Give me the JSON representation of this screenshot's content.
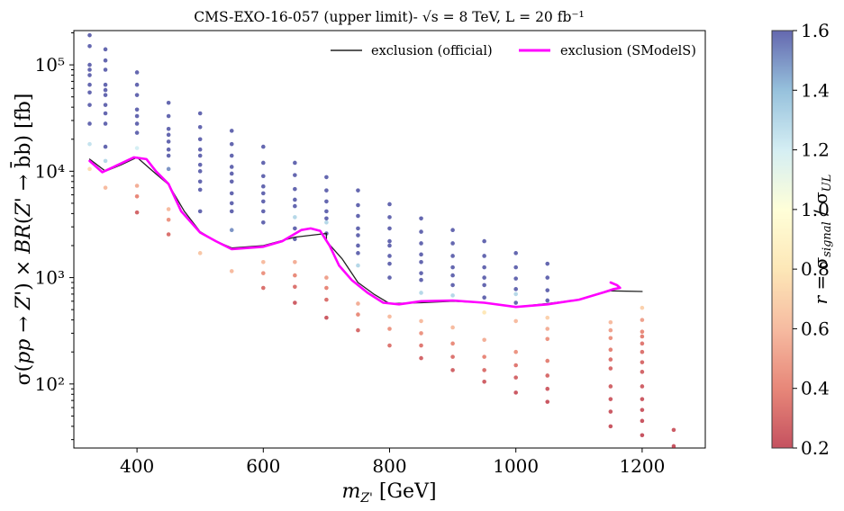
{
  "chart_data": {
    "type": "scatter",
    "title": "CMS-EXO-16-057 (upper limit)- √s = 8 TeV, L = 20 fb⁻¹",
    "xlabel": "m_Z' [GeV]",
    "ylabel": "σ(pp → Z') × BR(Z' → b̄b) [fb]",
    "xlim": [
      300,
      1300
    ],
    "ylim": [
      25,
      210000
    ],
    "yscale": "log",
    "xticks": [
      400,
      600,
      800,
      1000,
      1200
    ],
    "yticks": [
      {
        "value": 100,
        "label": "10²"
      },
      {
        "value": 1000,
        "label": "10³"
      },
      {
        "value": 10000,
        "label": "10⁴"
      },
      {
        "value": 100000,
        "label": "10⁵"
      }
    ],
    "colorbar": {
      "label": "r = σ_signal / σ_UL",
      "min": 0.2,
      "max": 1.6,
      "ticks": [
        "0.2",
        "0.4",
        "0.6",
        "0.8",
        "1.0",
        "1.2",
        "1.4",
        "1.6"
      ]
    },
    "legend": {
      "placement": "top-right",
      "entries": [
        {
          "label": "exclusion (official)",
          "color": "#222222"
        },
        {
          "label": "exclusion (SModelS)",
          "color": "#ff00ff"
        }
      ]
    },
    "series": [
      {
        "name": "exclusion (official)",
        "color": "#222222",
        "x": [
          325,
          350,
          375,
          400,
          425,
          450,
          475,
          500,
          525,
          550,
          600,
          650,
          700,
          700,
          725,
          750,
          775,
          800,
          850,
          900,
          950,
          1000,
          1050,
          1100,
          1150,
          1200
        ],
        "y": [
          13000,
          10000,
          11500,
          13500,
          10000,
          7500,
          4200,
          2700,
          2200,
          1900,
          2000,
          2400,
          2600,
          2200,
          1500,
          900,
          700,
          570,
          580,
          600,
          580,
          530,
          570,
          620,
          750,
          740
        ]
      },
      {
        "name": "exclusion (SModelS)",
        "color": "#ff00ff",
        "x": [
          325,
          345,
          370,
          395,
          415,
          430,
          450,
          470,
          500,
          525,
          550,
          600,
          630,
          660,
          675,
          690,
          705,
          720,
          740,
          765,
          790,
          815,
          850,
          900,
          950,
          1000,
          1050,
          1100,
          1140,
          1155,
          1165,
          1160,
          1150
        ],
        "y": [
          12500,
          9800,
          11500,
          13500,
          13000,
          10000,
          7600,
          4200,
          2650,
          2200,
          1850,
          1950,
          2200,
          2800,
          2900,
          2750,
          2000,
          1300,
          950,
          720,
          580,
          560,
          600,
          610,
          580,
          530,
          560,
          620,
          730,
          780,
          800,
          850,
          900
        ]
      }
    ],
    "points": [
      {
        "x": 325,
        "y": 190000,
        "r": 1.6
      },
      {
        "x": 325,
        "y": 150000,
        "r": 1.6
      },
      {
        "x": 325,
        "y": 100000,
        "r": 1.6
      },
      {
        "x": 325,
        "y": 90000,
        "r": 1.6
      },
      {
        "x": 325,
        "y": 80000,
        "r": 1.6
      },
      {
        "x": 325,
        "y": 65000,
        "r": 1.6
      },
      {
        "x": 325,
        "y": 55000,
        "r": 1.6
      },
      {
        "x": 325,
        "y": 42000,
        "r": 1.6
      },
      {
        "x": 325,
        "y": 28000,
        "r": 1.6
      },
      {
        "x": 325,
        "y": 18000,
        "r": 1.25
      },
      {
        "x": 325,
        "y": 10500,
        "r": 0.75
      },
      {
        "x": 350,
        "y": 140000,
        "r": 1.6
      },
      {
        "x": 350,
        "y": 110000,
        "r": 1.6
      },
      {
        "x": 350,
        "y": 90000,
        "r": 1.6
      },
      {
        "x": 350,
        "y": 65000,
        "r": 1.6
      },
      {
        "x": 350,
        "y": 58000,
        "r": 1.6
      },
      {
        "x": 350,
        "y": 52000,
        "r": 1.6
      },
      {
        "x": 350,
        "y": 42000,
        "r": 1.6
      },
      {
        "x": 350,
        "y": 35000,
        "r": 1.6
      },
      {
        "x": 350,
        "y": 28000,
        "r": 1.6
      },
      {
        "x": 350,
        "y": 17000,
        "r": 1.6
      },
      {
        "x": 350,
        "y": 12500,
        "r": 1.3
      },
      {
        "x": 350,
        "y": 7000,
        "r": 0.6
      },
      {
        "x": 400,
        "y": 85000,
        "r": 1.6
      },
      {
        "x": 400,
        "y": 65000,
        "r": 1.6
      },
      {
        "x": 400,
        "y": 52000,
        "r": 1.6
      },
      {
        "x": 400,
        "y": 38000,
        "r": 1.6
      },
      {
        "x": 400,
        "y": 33000,
        "r": 1.6
      },
      {
        "x": 400,
        "y": 28000,
        "r": 1.6
      },
      {
        "x": 400,
        "y": 23000,
        "r": 1.6
      },
      {
        "x": 400,
        "y": 16500,
        "r": 1.2
      },
      {
        "x": 400,
        "y": 7300,
        "r": 0.55
      },
      {
        "x": 400,
        "y": 5800,
        "r": 0.4
      },
      {
        "x": 400,
        "y": 4100,
        "r": 0.28
      },
      {
        "x": 450,
        "y": 44000,
        "r": 1.6
      },
      {
        "x": 450,
        "y": 33000,
        "r": 1.6
      },
      {
        "x": 450,
        "y": 25000,
        "r": 1.6
      },
      {
        "x": 450,
        "y": 22000,
        "r": 1.6
      },
      {
        "x": 450,
        "y": 19000,
        "r": 1.6
      },
      {
        "x": 450,
        "y": 16000,
        "r": 1.6
      },
      {
        "x": 450,
        "y": 14000,
        "r": 1.6
      },
      {
        "x": 450,
        "y": 10500,
        "r": 1.5
      },
      {
        "x": 450,
        "y": 4400,
        "r": 0.6
      },
      {
        "x": 450,
        "y": 3500,
        "r": 0.45
      },
      {
        "x": 450,
        "y": 2550,
        "r": 0.32
      },
      {
        "x": 500,
        "y": 35000,
        "r": 1.6
      },
      {
        "x": 500,
        "y": 26000,
        "r": 1.6
      },
      {
        "x": 500,
        "y": 20000,
        "r": 1.6
      },
      {
        "x": 500,
        "y": 16000,
        "r": 1.6
      },
      {
        "x": 500,
        "y": 14000,
        "r": 1.6
      },
      {
        "x": 500,
        "y": 11500,
        "r": 1.6
      },
      {
        "x": 500,
        "y": 10000,
        "r": 1.6
      },
      {
        "x": 500,
        "y": 8000,
        "r": 1.6
      },
      {
        "x": 500,
        "y": 6700,
        "r": 1.6
      },
      {
        "x": 500,
        "y": 4200,
        "r": 1.6
      },
      {
        "x": 500,
        "y": 1700,
        "r": 0.65
      },
      {
        "x": 550,
        "y": 24000,
        "r": 1.6
      },
      {
        "x": 550,
        "y": 18000,
        "r": 1.6
      },
      {
        "x": 550,
        "y": 14000,
        "r": 1.6
      },
      {
        "x": 550,
        "y": 11000,
        "r": 1.6
      },
      {
        "x": 550,
        "y": 9500,
        "r": 1.6
      },
      {
        "x": 550,
        "y": 8000,
        "r": 1.6
      },
      {
        "x": 550,
        "y": 6200,
        "r": 1.6
      },
      {
        "x": 550,
        "y": 5000,
        "r": 1.6
      },
      {
        "x": 550,
        "y": 4200,
        "r": 1.6
      },
      {
        "x": 550,
        "y": 2800,
        "r": 1.5
      },
      {
        "x": 550,
        "y": 1150,
        "r": 0.6
      },
      {
        "x": 600,
        "y": 17000,
        "r": 1.6
      },
      {
        "x": 600,
        "y": 12000,
        "r": 1.6
      },
      {
        "x": 600,
        "y": 9000,
        "r": 1.6
      },
      {
        "x": 600,
        "y": 7200,
        "r": 1.6
      },
      {
        "x": 600,
        "y": 6200,
        "r": 1.6
      },
      {
        "x": 600,
        "y": 5200,
        "r": 1.6
      },
      {
        "x": 600,
        "y": 4200,
        "r": 1.6
      },
      {
        "x": 600,
        "y": 3300,
        "r": 1.6
      },
      {
        "x": 600,
        "y": 1400,
        "r": 0.6
      },
      {
        "x": 600,
        "y": 1100,
        "r": 0.45
      },
      {
        "x": 600,
        "y": 800,
        "r": 0.32
      },
      {
        "x": 650,
        "y": 12000,
        "r": 1.6
      },
      {
        "x": 650,
        "y": 9200,
        "r": 1.6
      },
      {
        "x": 650,
        "y": 6800,
        "r": 1.6
      },
      {
        "x": 650,
        "y": 5400,
        "r": 1.6
      },
      {
        "x": 650,
        "y": 4700,
        "r": 1.6
      },
      {
        "x": 650,
        "y": 3700,
        "r": 1.3
      },
      {
        "x": 650,
        "y": 2900,
        "r": 1.6
      },
      {
        "x": 650,
        "y": 2300,
        "r": 1.6
      },
      {
        "x": 650,
        "y": 1400,
        "r": 0.55
      },
      {
        "x": 650,
        "y": 1050,
        "r": 0.42
      },
      {
        "x": 650,
        "y": 820,
        "r": 0.33
      },
      {
        "x": 650,
        "y": 580,
        "r": 0.25
      },
      {
        "x": 700,
        "y": 8800,
        "r": 1.6
      },
      {
        "x": 700,
        "y": 6600,
        "r": 1.6
      },
      {
        "x": 700,
        "y": 5200,
        "r": 1.6
      },
      {
        "x": 700,
        "y": 4200,
        "r": 1.6
      },
      {
        "x": 700,
        "y": 3600,
        "r": 1.6
      },
      {
        "x": 700,
        "y": 3300,
        "r": 1.3
      },
      {
        "x": 700,
        "y": 2600,
        "r": 1.6
      },
      {
        "x": 700,
        "y": 1000,
        "r": 0.5
      },
      {
        "x": 700,
        "y": 800,
        "r": 0.4
      },
      {
        "x": 700,
        "y": 620,
        "r": 0.32
      },
      {
        "x": 700,
        "y": 420,
        "r": 0.24
      },
      {
        "x": 750,
        "y": 6600,
        "r": 1.6
      },
      {
        "x": 750,
        "y": 4800,
        "r": 1.6
      },
      {
        "x": 750,
        "y": 3800,
        "r": 1.6
      },
      {
        "x": 750,
        "y": 2900,
        "r": 1.6
      },
      {
        "x": 750,
        "y": 2500,
        "r": 1.6
      },
      {
        "x": 750,
        "y": 2000,
        "r": 1.6
      },
      {
        "x": 750,
        "y": 1700,
        "r": 1.6
      },
      {
        "x": 750,
        "y": 1300,
        "r": 1.3
      },
      {
        "x": 750,
        "y": 570,
        "r": 0.55
      },
      {
        "x": 750,
        "y": 450,
        "r": 0.42
      },
      {
        "x": 750,
        "y": 320,
        "r": 0.3
      },
      {
        "x": 800,
        "y": 4900,
        "r": 1.6
      },
      {
        "x": 800,
        "y": 3700,
        "r": 1.6
      },
      {
        "x": 800,
        "y": 2900,
        "r": 1.6
      },
      {
        "x": 800,
        "y": 2200,
        "r": 1.6
      },
      {
        "x": 800,
        "y": 2000,
        "r": 1.6
      },
      {
        "x": 800,
        "y": 1600,
        "r": 1.6
      },
      {
        "x": 800,
        "y": 1350,
        "r": 1.6
      },
      {
        "x": 800,
        "y": 1000,
        "r": 1.6
      },
      {
        "x": 800,
        "y": 430,
        "r": 0.6
      },
      {
        "x": 800,
        "y": 330,
        "r": 0.45
      },
      {
        "x": 800,
        "y": 230,
        "r": 0.34
      },
      {
        "x": 850,
        "y": 3600,
        "r": 1.6
      },
      {
        "x": 850,
        "y": 2700,
        "r": 1.6
      },
      {
        "x": 850,
        "y": 2100,
        "r": 1.6
      },
      {
        "x": 850,
        "y": 1650,
        "r": 1.6
      },
      {
        "x": 850,
        "y": 1400,
        "r": 1.6
      },
      {
        "x": 850,
        "y": 1100,
        "r": 1.6
      },
      {
        "x": 850,
        "y": 950,
        "r": 1.6
      },
      {
        "x": 850,
        "y": 720,
        "r": 1.3
      },
      {
        "x": 850,
        "y": 390,
        "r": 0.6
      },
      {
        "x": 850,
        "y": 300,
        "r": 0.45
      },
      {
        "x": 850,
        "y": 230,
        "r": 0.35
      },
      {
        "x": 850,
        "y": 175,
        "r": 0.28
      },
      {
        "x": 900,
        "y": 2800,
        "r": 1.6
      },
      {
        "x": 900,
        "y": 2100,
        "r": 1.6
      },
      {
        "x": 900,
        "y": 1600,
        "r": 1.6
      },
      {
        "x": 900,
        "y": 1250,
        "r": 1.6
      },
      {
        "x": 900,
        "y": 1050,
        "r": 1.6
      },
      {
        "x": 900,
        "y": 850,
        "r": 1.6
      },
      {
        "x": 900,
        "y": 680,
        "r": 1.3
      },
      {
        "x": 900,
        "y": 340,
        "r": 0.6
      },
      {
        "x": 900,
        "y": 240,
        "r": 0.42
      },
      {
        "x": 900,
        "y": 180,
        "r": 0.33
      },
      {
        "x": 900,
        "y": 135,
        "r": 0.27
      },
      {
        "x": 950,
        "y": 2200,
        "r": 1.6
      },
      {
        "x": 950,
        "y": 1600,
        "r": 1.6
      },
      {
        "x": 950,
        "y": 1250,
        "r": 1.6
      },
      {
        "x": 950,
        "y": 1000,
        "r": 1.6
      },
      {
        "x": 950,
        "y": 850,
        "r": 1.6
      },
      {
        "x": 950,
        "y": 650,
        "r": 1.6
      },
      {
        "x": 950,
        "y": 470,
        "r": 0.8
      },
      {
        "x": 950,
        "y": 260,
        "r": 0.55
      },
      {
        "x": 950,
        "y": 180,
        "r": 0.4
      },
      {
        "x": 950,
        "y": 135,
        "r": 0.32
      },
      {
        "x": 950,
        "y": 105,
        "r": 0.26
      },
      {
        "x": 1000,
        "y": 1700,
        "r": 1.6
      },
      {
        "x": 1000,
        "y": 1250,
        "r": 1.6
      },
      {
        "x": 1000,
        "y": 980,
        "r": 1.6
      },
      {
        "x": 1000,
        "y": 780,
        "r": 1.6
      },
      {
        "x": 1000,
        "y": 700,
        "r": 1.3
      },
      {
        "x": 1000,
        "y": 580,
        "r": 1.6
      },
      {
        "x": 1000,
        "y": 390,
        "r": 0.6
      },
      {
        "x": 1000,
        "y": 200,
        "r": 0.45
      },
      {
        "x": 1000,
        "y": 150,
        "r": 0.35
      },
      {
        "x": 1000,
        "y": 115,
        "r": 0.28
      },
      {
        "x": 1000,
        "y": 83,
        "r": 0.23
      },
      {
        "x": 1050,
        "y": 1350,
        "r": 1.6
      },
      {
        "x": 1050,
        "y": 1000,
        "r": 1.6
      },
      {
        "x": 1050,
        "y": 760,
        "r": 1.6
      },
      {
        "x": 1050,
        "y": 610,
        "r": 1.6
      },
      {
        "x": 1050,
        "y": 420,
        "r": 0.7
      },
      {
        "x": 1050,
        "y": 330,
        "r": 0.55
      },
      {
        "x": 1050,
        "y": 265,
        "r": 0.45
      },
      {
        "x": 1050,
        "y": 165,
        "r": 0.38
      },
      {
        "x": 1050,
        "y": 120,
        "r": 0.3
      },
      {
        "x": 1050,
        "y": 90,
        "r": 0.25
      },
      {
        "x": 1050,
        "y": 68,
        "r": 0.22
      },
      {
        "x": 1150,
        "y": 380,
        "r": 0.6
      },
      {
        "x": 1150,
        "y": 320,
        "r": 0.5
      },
      {
        "x": 1150,
        "y": 270,
        "r": 0.45
      },
      {
        "x": 1150,
        "y": 210,
        "r": 0.38
      },
      {
        "x": 1150,
        "y": 170,
        "r": 0.33
      },
      {
        "x": 1150,
        "y": 140,
        "r": 0.3
      },
      {
        "x": 1150,
        "y": 95,
        "r": 0.27
      },
      {
        "x": 1150,
        "y": 72,
        "r": 0.25
      },
      {
        "x": 1150,
        "y": 55,
        "r": 0.23
      },
      {
        "x": 1150,
        "y": 40,
        "r": 0.22
      },
      {
        "x": 1200,
        "y": 520,
        "r": 0.7
      },
      {
        "x": 1200,
        "y": 400,
        "r": 0.5
      },
      {
        "x": 1200,
        "y": 310,
        "r": 0.42
      },
      {
        "x": 1200,
        "y": 280,
        "r": 0.38
      },
      {
        "x": 1200,
        "y": 240,
        "r": 0.35
      },
      {
        "x": 1200,
        "y": 200,
        "r": 0.33
      },
      {
        "x": 1200,
        "y": 160,
        "r": 0.3
      },
      {
        "x": 1200,
        "y": 130,
        "r": 0.28
      },
      {
        "x": 1200,
        "y": 95,
        "r": 0.26
      },
      {
        "x": 1200,
        "y": 72,
        "r": 0.24
      },
      {
        "x": 1200,
        "y": 57,
        "r": 0.23
      },
      {
        "x": 1200,
        "y": 45,
        "r": 0.22
      },
      {
        "x": 1200,
        "y": 33,
        "r": 0.21
      },
      {
        "x": 1250,
        "y": 37,
        "r": 0.24
      },
      {
        "x": 1250,
        "y": 26,
        "r": 0.21
      }
    ]
  }
}
